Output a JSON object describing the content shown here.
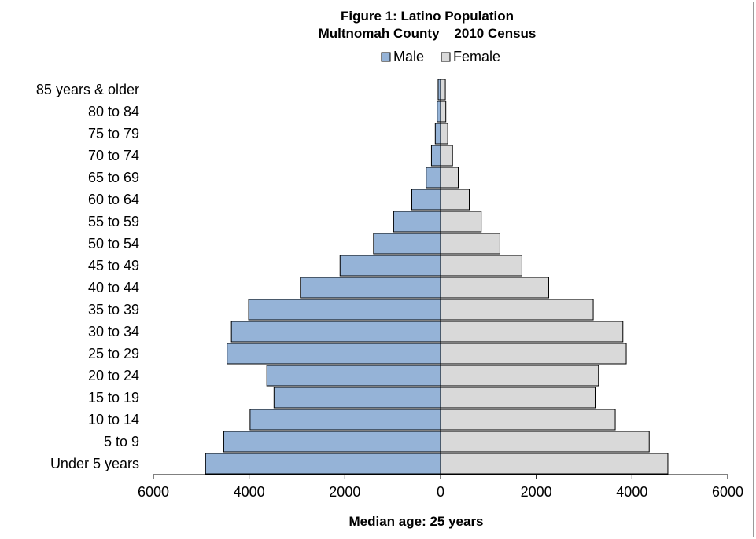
{
  "chart_data": {
    "type": "bar",
    "orientation": "horizontal",
    "layout": "population-pyramid",
    "title_line1": "Figure 1: Latino Population",
    "title_line2": "Multnomah County    2010 Census",
    "xlabel": "Median age: 25 years",
    "xlim": [
      -6000,
      6000
    ],
    "x_tick_values": [
      -6000,
      -4000,
      -2000,
      0,
      2000,
      4000,
      6000
    ],
    "x_tick_labels": [
      "6000",
      "4000",
      "2000",
      "0",
      "2000",
      "4000",
      "6000"
    ],
    "legend_position": "top",
    "grid": false,
    "categories": [
      "85 years & older",
      "80 to 84",
      "75 to 79",
      "70 to 74",
      "65 to 69",
      "60 to 64",
      "55 to 59",
      "50 to 54",
      "45 to 49",
      "40 to 44",
      "35 to 39",
      "30 to 34",
      "25 to 29",
      "20 to 24",
      "15 to 19",
      "10 to 14",
      "5 to 9",
      "Under 5 years"
    ],
    "series": [
      {
        "name": "Male",
        "color": "#95b3d7",
        "side": "left",
        "values": [
          50,
          70,
          110,
          190,
          300,
          600,
          980,
          1400,
          2100,
          2930,
          4010,
          4370,
          4460,
          3630,
          3480,
          3980,
          4530,
          4910
        ]
      },
      {
        "name": "Female",
        "color": "#d9d9d9",
        "side": "right",
        "values": [
          100,
          110,
          150,
          250,
          370,
          600,
          850,
          1240,
          1700,
          2260,
          3190,
          3810,
          3880,
          3300,
          3230,
          3650,
          4360,
          4750
        ]
      }
    ]
  }
}
